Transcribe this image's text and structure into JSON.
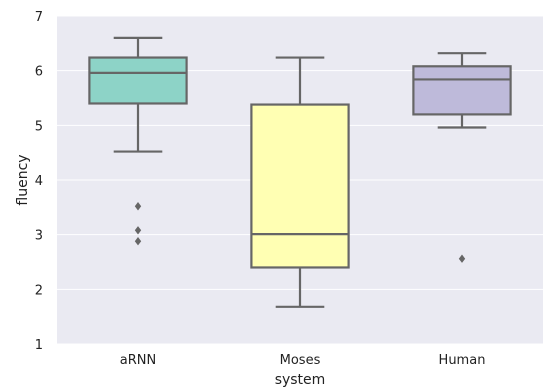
{
  "chart_data": {
    "type": "box",
    "title": "",
    "xlabel": "system",
    "ylabel": "fluency",
    "ylim": [
      1,
      7
    ],
    "yticks": [
      "1",
      "2",
      "3",
      "4",
      "5",
      "6",
      "7"
    ],
    "grid": "horizontal",
    "colors": {
      "background": "#EAEAF2",
      "grid": "#FFFFFF",
      "stroke": "#666666"
    },
    "categories": [
      "aRNN",
      "Moses",
      "Human"
    ],
    "boxes": [
      {
        "category": "aRNN",
        "color": "#8DD3C7",
        "whisker_low": 4.52,
        "q1": 5.4,
        "median": 5.96,
        "q3": 6.24,
        "whisker_high": 6.6,
        "outliers": [
          3.52,
          3.08,
          2.88
        ]
      },
      {
        "category": "Moses",
        "color": "#FFFFB3",
        "whisker_low": 1.68,
        "q1": 2.4,
        "median": 3.01,
        "q3": 5.38,
        "whisker_high": 6.24,
        "outliers": []
      },
      {
        "category": "Human",
        "color": "#BEBADA",
        "whisker_low": 4.96,
        "q1": 5.2,
        "median": 5.84,
        "q3": 6.08,
        "whisker_high": 6.32,
        "outliers": [
          2.56
        ]
      }
    ]
  }
}
